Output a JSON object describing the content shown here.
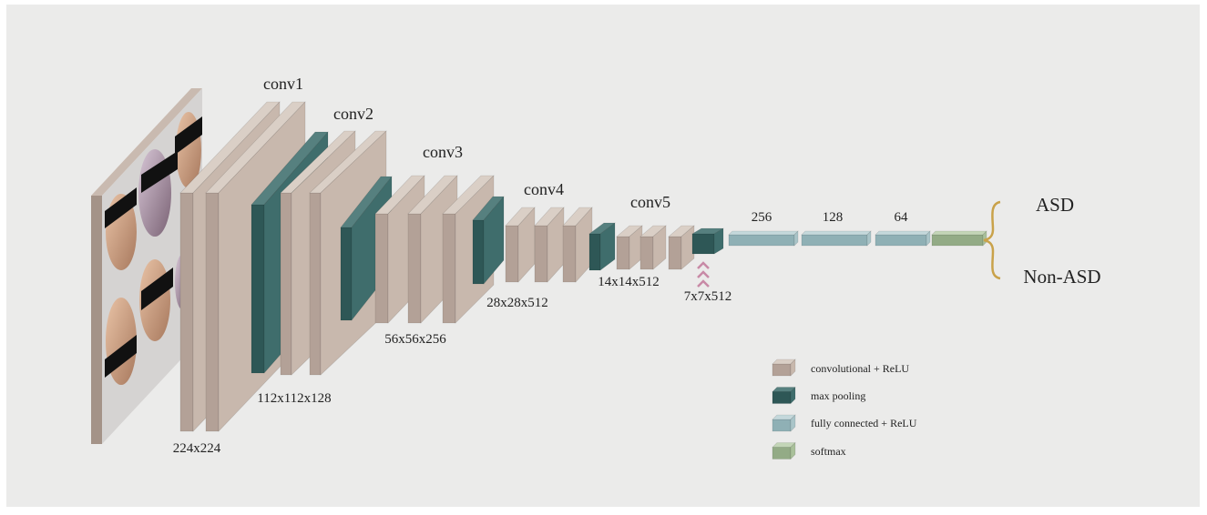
{
  "layers": [
    "conv1",
    "conv2",
    "conv3",
    "conv4",
    "conv5"
  ],
  "dimensions": [
    "224x224",
    "112x112x128",
    "56x56x256",
    "28x28x512",
    "14x14x512",
    "7x7x512"
  ],
  "fc_sizes": [
    256,
    128,
    64
  ],
  "outputs": [
    "ASD",
    "Non-ASD"
  ],
  "legend": [
    "convolutional + ReLU",
    "max pooling",
    "fully connected + ReLU",
    "softmax"
  ]
}
